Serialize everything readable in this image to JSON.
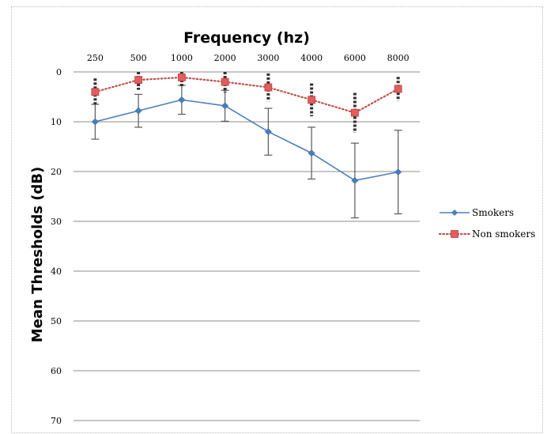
{
  "chart_data": {
    "type": "line",
    "title": "Frequency (hz)",
    "ylabel": "Mean Thresholds (dB)",
    "xlabel": "",
    "categories": [
      "250",
      "500",
      "1000",
      "2000",
      "3000",
      "4000",
      "6000",
      "8000"
    ],
    "y_ticks": [
      "0",
      "10",
      "20",
      "30",
      "40",
      "50",
      "60",
      "70"
    ],
    "ylim": [
      0,
      70
    ],
    "y_inverted": true,
    "x_axis_position": "top",
    "grid": "horizontal",
    "legend_position": "right",
    "series": [
      {
        "name": "Smokers",
        "color": "#4a7ebb",
        "line_style": "solid",
        "marker": "diamond",
        "values": [
          10.0,
          7.8,
          5.6,
          6.8,
          12.0,
          16.3,
          21.8,
          20.1
        ],
        "error_low": [
          3.5,
          3.3,
          2.9,
          3.1,
          4.7,
          5.2,
          7.5,
          8.4
        ],
        "error_high": [
          3.5,
          3.3,
          2.9,
          3.1,
          4.7,
          5.2,
          7.5,
          8.4
        ]
      },
      {
        "name": "Non smokers",
        "color": "#c0504d",
        "line_style": "dotted",
        "marker": "square",
        "values": [
          4.0,
          1.6,
          1.1,
          2.0,
          3.1,
          5.6,
          8.2,
          3.4
        ],
        "error_low": [
          2.7,
          2.0,
          1.8,
          2.1,
          2.8,
          3.3,
          4.0,
          2.4
        ],
        "error_high": [
          2.7,
          2.0,
          1.8,
          2.1,
          2.8,
          3.3,
          4.0,
          2.4
        ]
      }
    ]
  }
}
